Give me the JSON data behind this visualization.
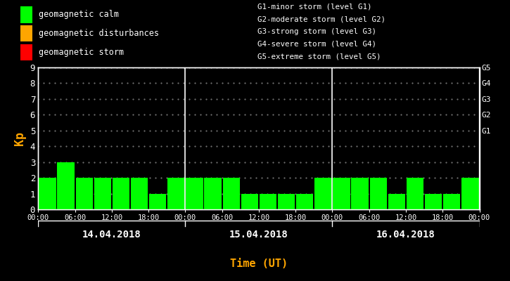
{
  "background_color": "#000000",
  "bar_color": "#00FF00",
  "bar_color_disturbance": "#FFA500",
  "bar_color_storm": "#FF0000",
  "text_color": "#FFFFFF",
  "orange_color": "#FFA500",
  "kp_values_day1": [
    2,
    3,
    2,
    2,
    2,
    2,
    1,
    2
  ],
  "kp_values_day2": [
    2,
    2,
    2,
    1,
    1,
    1,
    1,
    2
  ],
  "kp_values_day3": [
    2,
    2,
    2,
    1,
    2,
    1,
    1,
    2
  ],
  "ylim": [
    0,
    9
  ],
  "yticks": [
    0,
    1,
    2,
    3,
    4,
    5,
    6,
    7,
    8,
    9
  ],
  "right_labels": [
    "G1",
    "G2",
    "G3",
    "G4",
    "G5"
  ],
  "right_y_positions": [
    5,
    6,
    7,
    8,
    9
  ],
  "legend_items": [
    {
      "label": "geomagnetic calm",
      "color": "#00FF00"
    },
    {
      "label": "geomagnetic disturbances",
      "color": "#FFA500"
    },
    {
      "label": "geomagnetic storm",
      "color": "#FF0000"
    }
  ],
  "legend_right_text": [
    "G1-minor storm (level G1)",
    "G2-moderate storm (level G2)",
    "G3-strong storm (level G3)",
    "G4-severe storm (level G4)",
    "G5-extreme storm (level G5)"
  ],
  "date_labels": [
    "14.04.2018",
    "15.04.2018",
    "16.04.2018"
  ],
  "xlabel": "Time (UT)",
  "ylabel": "Kp",
  "day_tick_labels": [
    "00:00",
    "06:00",
    "12:00",
    "18:00"
  ],
  "n_days": 3,
  "bars_per_day": 8
}
